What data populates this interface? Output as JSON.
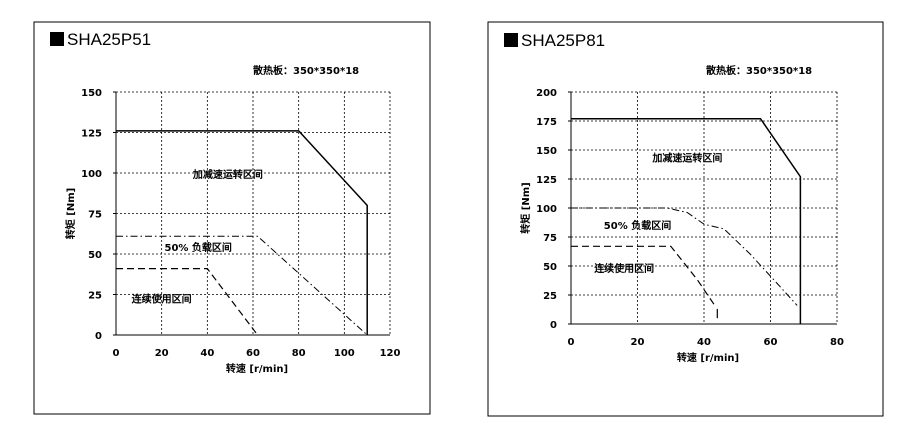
{
  "chart_data": [
    {
      "type": "line",
      "title": "SHA25P51",
      "note": "散热板：350*350*18",
      "xlabel": "转速 [r/min]",
      "ylabel": "转矩 [Nm]",
      "xlim": [
        0,
        120
      ],
      "ylim": [
        0,
        150
      ],
      "xticks": [
        0,
        20,
        40,
        60,
        80,
        100,
        120
      ],
      "yticks": [
        0,
        25,
        50,
        75,
        100,
        125,
        150
      ],
      "grid": true,
      "regions": [
        {
          "name": "加减速运转区间",
          "x": 49,
          "y": 97
        },
        {
          "name": "50% 负载区间",
          "x": 36,
          "y": 52
        },
        {
          "name": "连续使用区间",
          "x": 20,
          "y": 20
        }
      ],
      "series": [
        {
          "style": "solid",
          "points": [
            [
              0,
              126
            ],
            [
              80,
              126
            ],
            [
              110,
              80
            ],
            [
              110,
              0
            ]
          ]
        },
        {
          "style": "dashdot",
          "points": [
            [
              0,
              61
            ],
            [
              62,
              61
            ],
            [
              110,
              0
            ]
          ]
        },
        {
          "style": "dashed",
          "points": [
            [
              0,
              41
            ],
            [
              40,
              41
            ],
            [
              62,
              0
            ]
          ]
        }
      ]
    },
    {
      "type": "line",
      "title": "SHA25P81",
      "note": "散热板：350*350*18",
      "xlabel": "转速 [r/min]",
      "ylabel": "转矩 [Nm]",
      "xlim": [
        0,
        80
      ],
      "ylim": [
        0,
        200
      ],
      "xticks": [
        0,
        20,
        40,
        60,
        80
      ],
      "yticks": [
        0,
        25,
        50,
        75,
        100,
        125,
        150,
        175,
        200
      ],
      "grid": true,
      "regions": [
        {
          "name": "加减速运转区间",
          "x": 35,
          "y": 140
        },
        {
          "name": "50% 负载区间",
          "x": 20,
          "y": 82
        },
        {
          "name": "连续使用区间",
          "x": 16,
          "y": 45
        }
      ],
      "series": [
        {
          "style": "solid",
          "points": [
            [
              0,
              177
            ],
            [
              57,
              177
            ],
            [
              69,
              127
            ],
            [
              69,
              0
            ]
          ]
        },
        {
          "style": "dashdot",
          "points": [
            [
              0,
              100
            ],
            [
              29,
              100
            ],
            [
              35,
              96
            ],
            [
              40,
              86
            ],
            [
              46,
              82
            ],
            [
              54,
              60
            ],
            [
              62,
              35
            ],
            [
              68,
              16
            ]
          ]
        },
        {
          "style": "dashed",
          "points": [
            [
              0,
              67
            ],
            [
              30,
              67
            ],
            [
              38,
              38
            ],
            [
              43,
              17
            ]
          ]
        },
        {
          "style": "solid-mark",
          "points": [
            [
              44,
              13
            ],
            [
              44,
              5
            ]
          ]
        }
      ]
    }
  ]
}
